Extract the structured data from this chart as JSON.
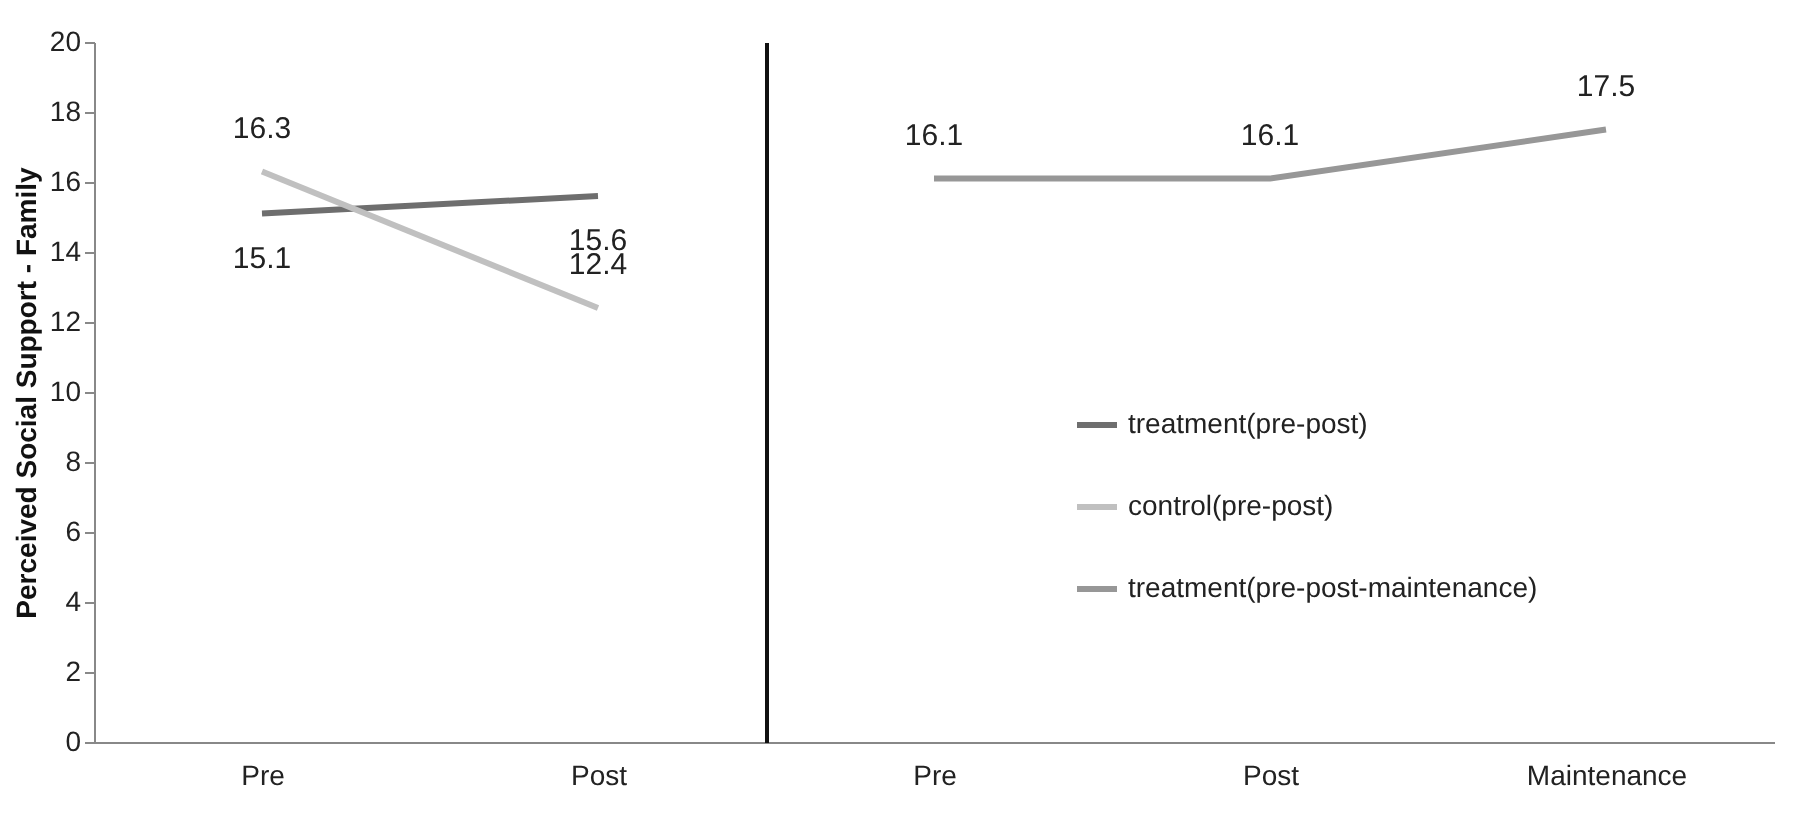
{
  "chart_data": [
    {
      "type": "line",
      "ylabel": "Perceived Social Support - Family",
      "categories": [
        "Pre",
        "Post"
      ],
      "series": [
        {
          "name": "treatment(pre-post)",
          "color": "#6e6e6e",
          "values": [
            15.1,
            15.6
          ]
        },
        {
          "name": "control(pre-post)",
          "color": "#c0c0c0",
          "values": [
            16.3,
            12.4
          ]
        }
      ],
      "ylim": [
        0,
        20
      ],
      "yticks": [
        0,
        2,
        4,
        6,
        8,
        10,
        12,
        14,
        16,
        18,
        20
      ],
      "grid": false,
      "legend": "right",
      "marker": "none",
      "line_style": "solid",
      "data_labels": true
    },
    {
      "type": "line",
      "categories": [
        "Pre",
        "Post",
        "Maintenance"
      ],
      "series": [
        {
          "name": "treatment(pre-post-maintenance)",
          "color": "#979797",
          "values": [
            16.1,
            16.1,
            17.5
          ]
        }
      ],
      "ylim": [
        0,
        20
      ],
      "grid": false,
      "tick_labels": "x",
      "legend": "right",
      "marker": "none",
      "line_style": "solid",
      "data_labels": true
    }
  ]
}
